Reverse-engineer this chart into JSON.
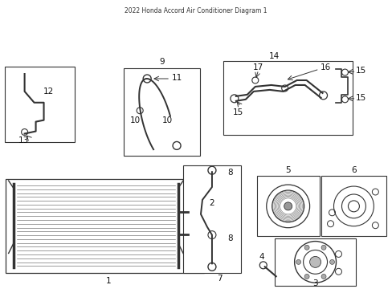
{
  "title": "2022 Honda Accord Air Conditioner Diagram 1",
  "bg_color": "#ffffff",
  "line_color": "#333333",
  "fig_width": 4.89,
  "fig_height": 3.6,
  "dpi": 100
}
